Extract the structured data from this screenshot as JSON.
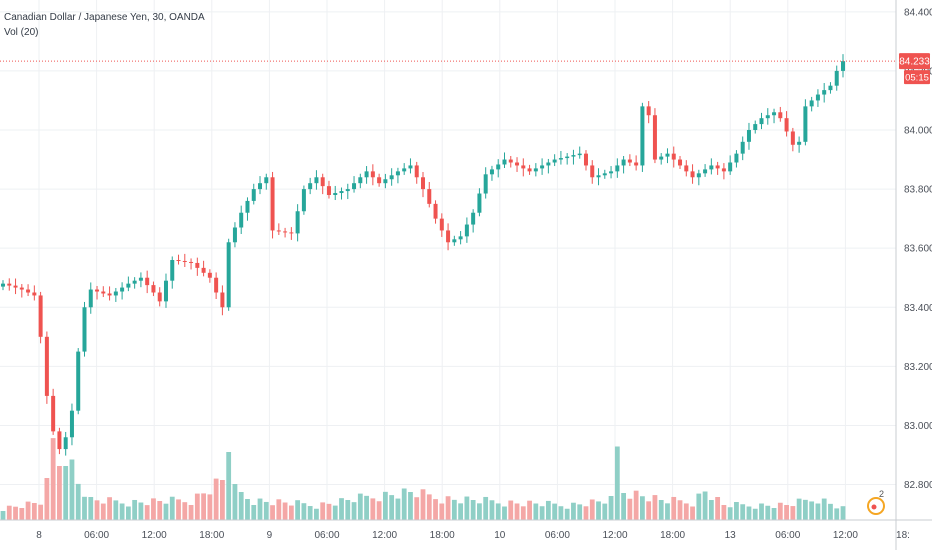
{
  "header": {
    "symbol_title": "Canadian Dollar / Japanese Yen, 30, OANDA",
    "volume_label": "Vol (20)"
  },
  "price_marker": {
    "last_price": "84.233",
    "countdown": "05:15"
  },
  "badge": {
    "count": "2"
  },
  "colors": {
    "up": "#26a69a",
    "down": "#ef5350",
    "up_volume": "#8fcfc6",
    "down_volume": "#f4a7a6",
    "grid": "#eef0f3",
    "price_line": "#ef5350",
    "axis_text": "#4a4f58",
    "badge": "#f5a623"
  },
  "chart_data": {
    "type": "candlestick",
    "title": "Canadian Dollar / Japanese Yen, 30, OANDA",
    "price_axis": {
      "ticks": [
        "84.400",
        "84.200",
        "84.000",
        "83.800",
        "83.600",
        "83.400",
        "83.200",
        "83.000",
        "82.800"
      ],
      "range": [
        82.68,
        84.44
      ]
    },
    "time_axis": {
      "ticks": [
        "8",
        "06:00",
        "12:00",
        "18:00",
        "9",
        "06:00",
        "12:00",
        "18:00",
        "10",
        "06:00",
        "12:00",
        "18:00",
        "13",
        "06:00",
        "12:00",
        "18:"
      ]
    },
    "grid": true,
    "last_price": 84.233,
    "volume_indicator": "Vol (20)",
    "close_waypoints": [
      [
        0,
        83.48
      ],
      [
        3,
        83.46
      ],
      [
        5,
        83.44
      ],
      [
        6,
        83.3
      ],
      [
        7,
        83.1
      ],
      [
        8,
        82.98
      ],
      [
        9,
        82.92
      ],
      [
        10,
        82.96
      ],
      [
        11,
        83.05
      ],
      [
        12,
        83.25
      ],
      [
        13,
        83.4
      ],
      [
        14,
        83.46
      ],
      [
        17,
        83.44
      ],
      [
        20,
        83.48
      ],
      [
        22,
        83.5
      ],
      [
        24,
        83.45
      ],
      [
        25,
        83.42
      ],
      [
        27,
        83.56
      ],
      [
        30,
        83.55
      ],
      [
        33,
        83.5
      ],
      [
        35,
        83.4
      ],
      [
        36,
        83.62
      ],
      [
        38,
        83.72
      ],
      [
        40,
        83.8
      ],
      [
        42,
        83.84
      ],
      [
        43,
        83.66
      ],
      [
        46,
        83.65
      ],
      [
        48,
        83.8
      ],
      [
        50,
        83.84
      ],
      [
        52,
        83.78
      ],
      [
        55,
        83.8
      ],
      [
        58,
        83.86
      ],
      [
        60,
        83.82
      ],
      [
        63,
        83.86
      ],
      [
        65,
        83.88
      ],
      [
        67,
        83.8
      ],
      [
        69,
        83.7
      ],
      [
        71,
        83.62
      ],
      [
        73,
        83.64
      ],
      [
        75,
        83.72
      ],
      [
        77,
        83.85
      ],
      [
        80,
        83.9
      ],
      [
        84,
        83.86
      ],
      [
        88,
        83.9
      ],
      [
        92,
        83.92
      ],
      [
        94,
        83.84
      ],
      [
        97,
        83.86
      ],
      [
        99,
        83.9
      ],
      [
        101,
        83.88
      ],
      [
        102,
        84.08
      ],
      [
        103,
        84.05
      ],
      [
        104,
        83.9
      ],
      [
        106,
        83.92
      ],
      [
        108,
        83.88
      ],
      [
        110,
        83.84
      ],
      [
        113,
        83.88
      ],
      [
        115,
        83.86
      ],
      [
        117,
        83.92
      ],
      [
        119,
        84.0
      ],
      [
        121,
        84.04
      ],
      [
        123,
        84.06
      ],
      [
        124,
        84.04
      ],
      [
        126,
        83.95
      ],
      [
        127,
        83.96
      ],
      [
        128,
        84.08
      ],
      [
        130,
        84.12
      ],
      [
        132,
        84.15
      ],
      [
        133,
        84.2
      ],
      [
        134,
        84.233
      ]
    ],
    "volume_waypoints": [
      [
        0,
        0.12
      ],
      [
        6,
        0.18
      ],
      [
        7,
        0.35
      ],
      [
        8,
        0.78
      ],
      [
        9,
        0.6
      ],
      [
        10,
        0.72
      ],
      [
        11,
        0.55
      ],
      [
        12,
        0.38
      ],
      [
        14,
        0.2
      ],
      [
        20,
        0.18
      ],
      [
        30,
        0.2
      ],
      [
        35,
        0.4
      ],
      [
        36,
        0.8
      ],
      [
        37,
        0.3
      ],
      [
        40,
        0.2
      ],
      [
        50,
        0.15
      ],
      [
        60,
        0.25
      ],
      [
        65,
        0.28
      ],
      [
        70,
        0.22
      ],
      [
        80,
        0.18
      ],
      [
        90,
        0.15
      ],
      [
        97,
        0.2
      ],
      [
        98,
        0.7
      ],
      [
        99,
        0.3
      ],
      [
        105,
        0.2
      ],
      [
        110,
        0.18
      ],
      [
        112,
        0.3
      ],
      [
        115,
        0.15
      ],
      [
        125,
        0.15
      ],
      [
        130,
        0.22
      ],
      [
        134,
        0.12
      ]
    ],
    "candle_count": 135
  }
}
